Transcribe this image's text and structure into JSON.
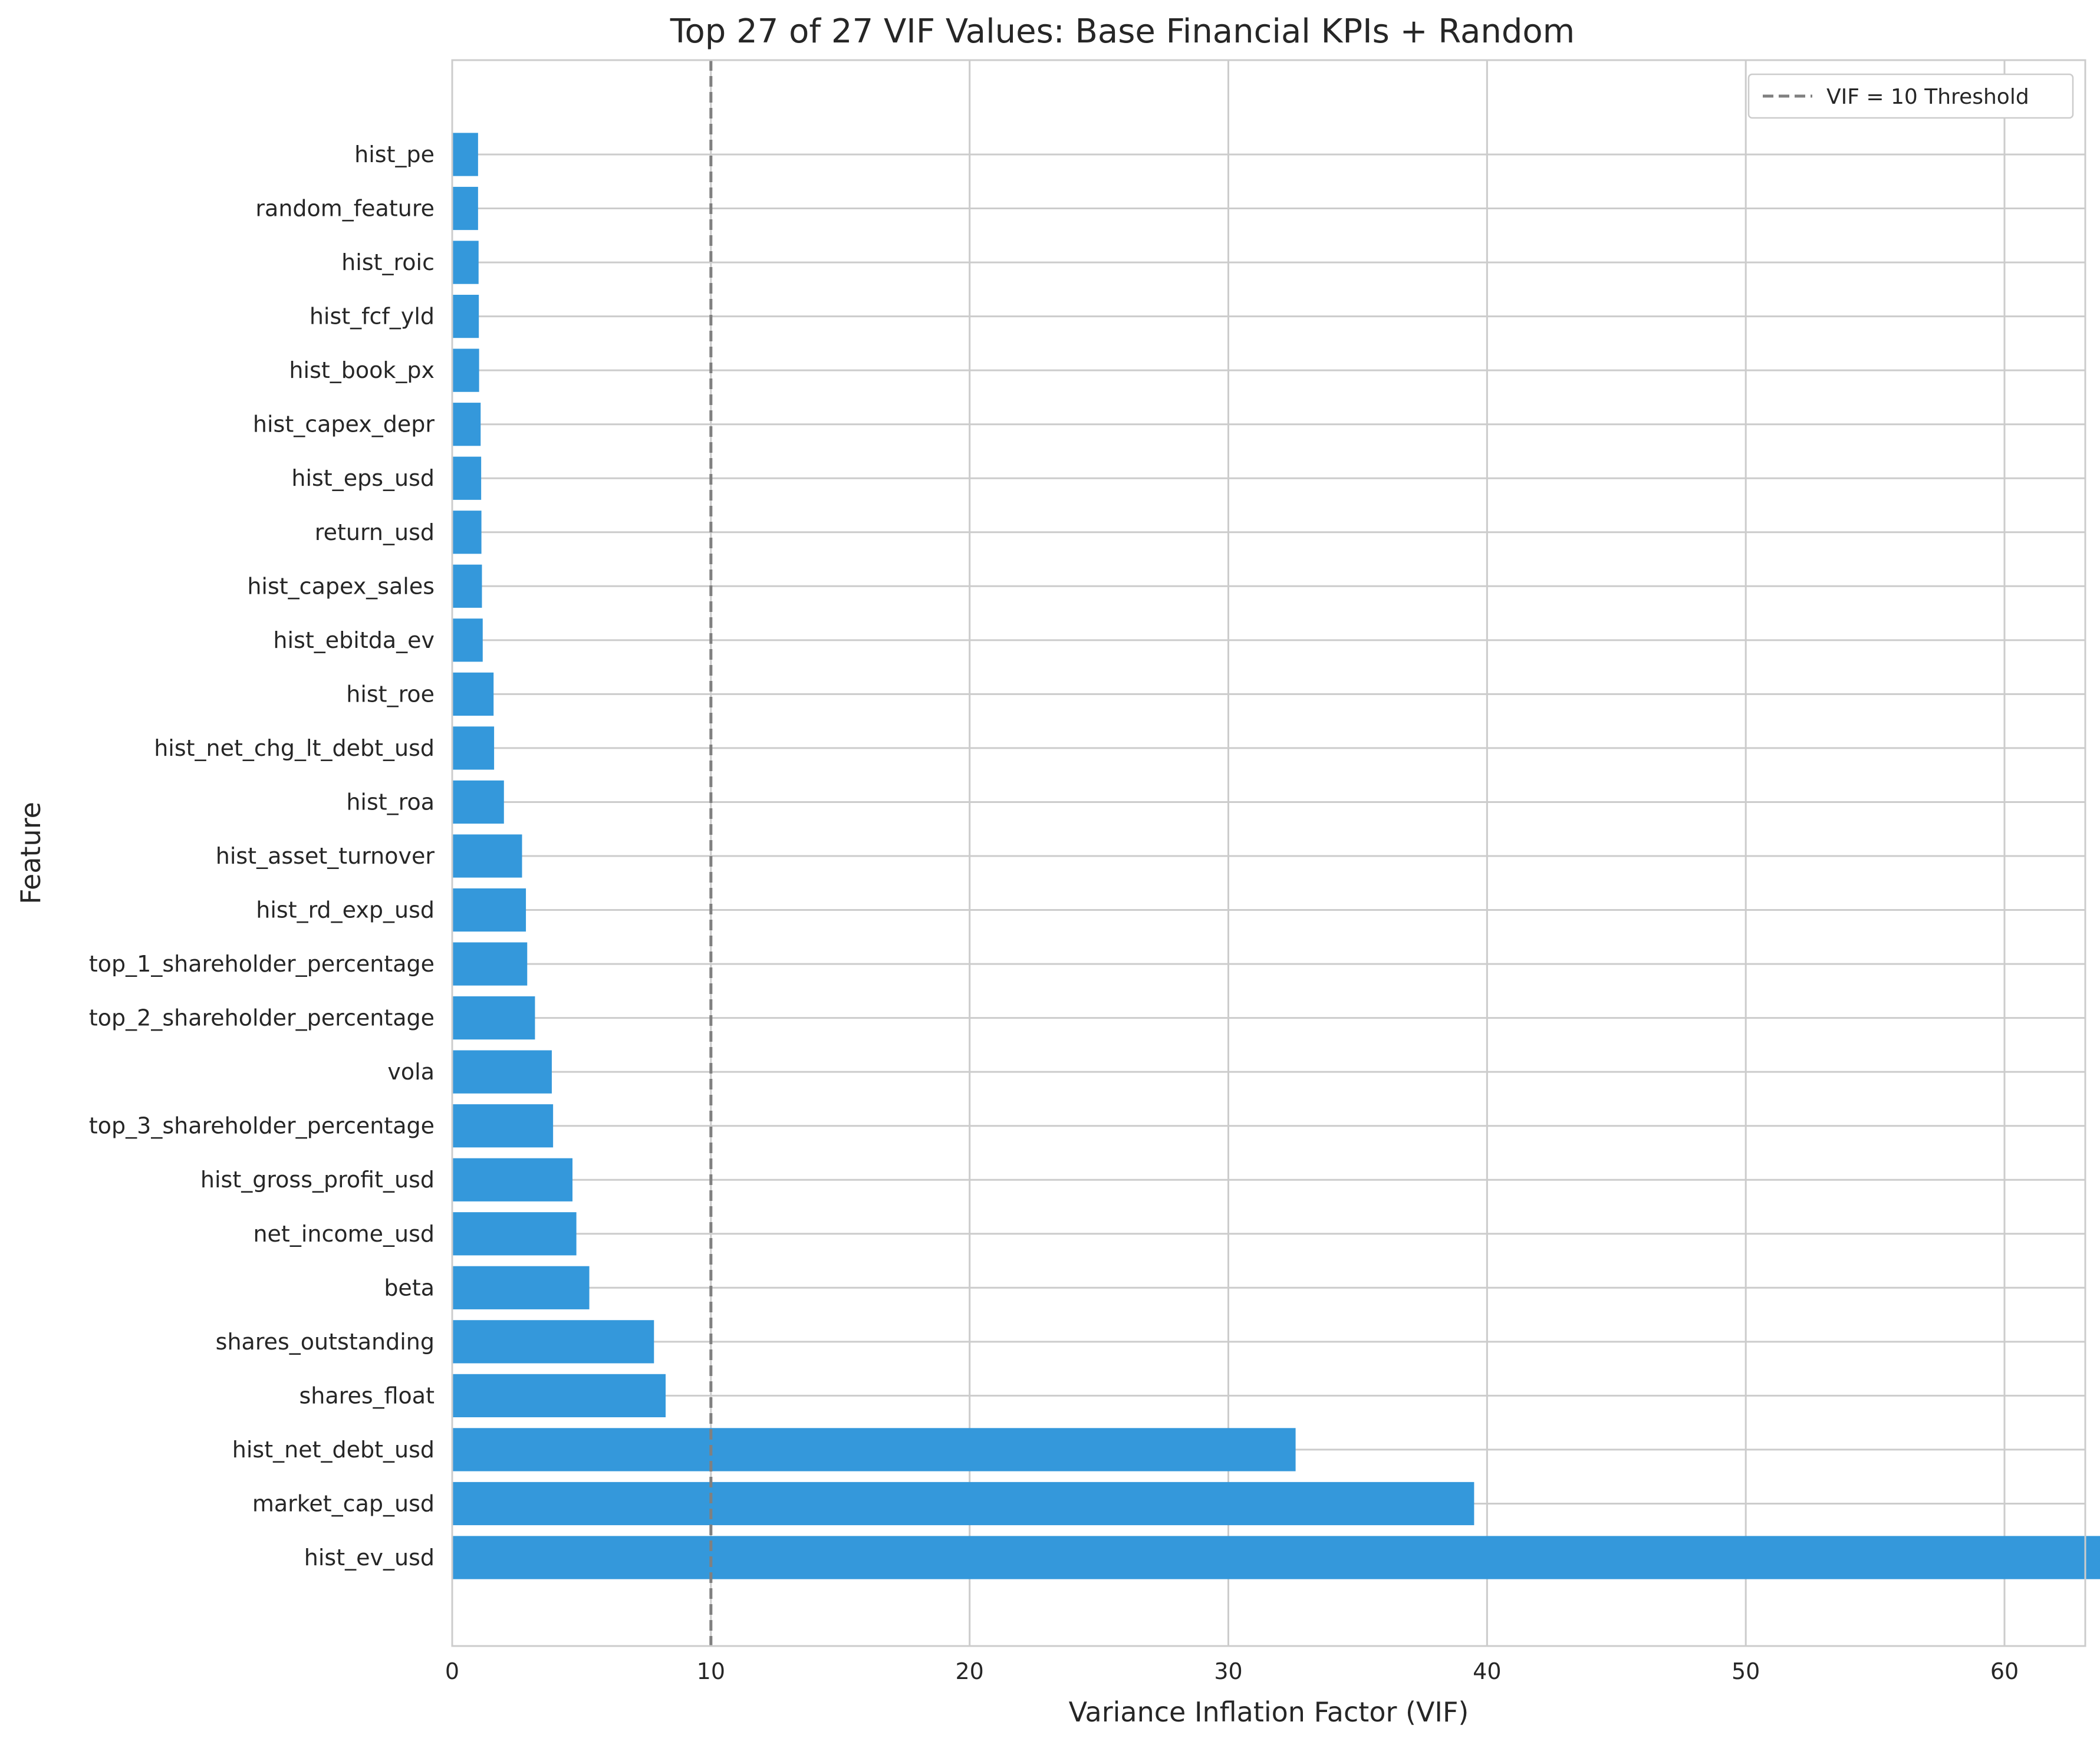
{
  "chart_data": {
    "type": "bar",
    "orientation": "horizontal",
    "title": "Top 27 of 27 VIF Values: Base Financial KPIs + Random",
    "xlabel": "Variance Inflation Factor (VIF)",
    "ylabel": "Feature",
    "xlim": [
      0,
      69.5
    ],
    "xticks": [
      0,
      10,
      20,
      30,
      40,
      50,
      60
    ],
    "grid": true,
    "bar_color": "#3498db",
    "categories": [
      "hist_pe",
      "random_feature",
      "hist_roic",
      "hist_fcf_yld",
      "hist_book_px",
      "hist_capex_depr",
      "hist_eps_usd",
      "return_usd",
      "hist_capex_sales",
      "hist_ebitda_ev",
      "hist_roe",
      "hist_net_chg_lt_debt_usd",
      "hist_roa",
      "hist_asset_turnover",
      "hist_rd_exp_usd",
      "top_1_shareholder_percentage",
      "top_2_shareholder_percentage",
      "vola",
      "top_3_shareholder_percentage",
      "hist_gross_profit_usd",
      "net_income_usd",
      "beta",
      "shares_outstanding",
      "shares_float",
      "hist_net_debt_usd",
      "market_cap_usd",
      "hist_ev_usd"
    ],
    "values": [
      1.0,
      1.0,
      1.02,
      1.03,
      1.04,
      1.1,
      1.12,
      1.13,
      1.15,
      1.18,
      1.6,
      1.62,
      2.0,
      2.7,
      2.85,
      2.9,
      3.2,
      3.85,
      3.9,
      4.65,
      4.8,
      5.3,
      7.8,
      8.25,
      32.6,
      39.5,
      66.4
    ],
    "threshold": {
      "value": 10,
      "label": "VIF = 10 Threshold",
      "color": "#808080",
      "style": "dashed"
    },
    "legend_position": "top-right"
  }
}
